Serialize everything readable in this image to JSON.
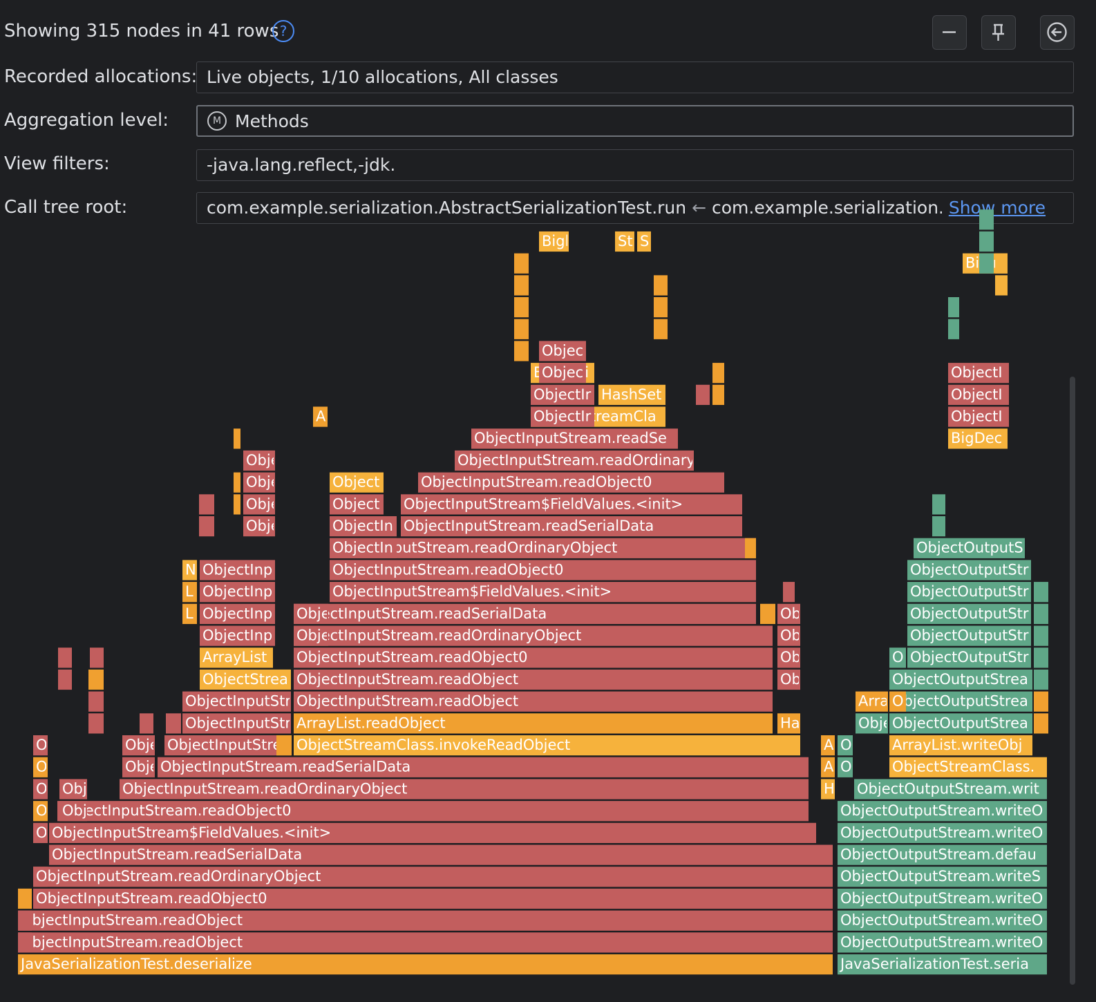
{
  "header": {
    "status": "Showing 315 nodes in 41 rows",
    "help_glyph": "?",
    "collapse_label": "−"
  },
  "settings": {
    "recorded_label": "Recorded allocations:",
    "recorded_value": "Live objects, 1/10 allocations, All classes",
    "aggregation_label": "Aggregation level:",
    "aggregation_badge": "M",
    "aggregation_value": "Methods",
    "filters_label": "View filters:",
    "filters_value": "-java.lang.reflect,-jdk.",
    "root_label": "Call tree root:",
    "root_value_1": "com.example.serialization.AbstractSerializationTest.run",
    "root_arrow": "←",
    "root_value_2": "com.example.serialization.Al",
    "root_more_glyph": "▸",
    "show_more": "Show more"
  },
  "icons": [
    "help-icon",
    "minus-icon",
    "pin-icon",
    "back-icon"
  ],
  "colors": {
    "red": "#c25e5e",
    "orange": "#f0a030",
    "yellow": "#f6b23c",
    "green": "#5fa788"
  },
  "flame_frames": [
    {
      "t": "JavaSerializationTest.deserialize",
      "c": "orange"
    },
    {
      "t": "ObjectInputStream.readObject",
      "c": "red"
    },
    {
      "t": "ObjectInputStream.readObject",
      "c": "red"
    },
    {
      "t": "ObjectInputStream.readObject0",
      "c": "red"
    },
    {
      "t": "ObjectInputStream.readOrdinaryObject",
      "c": "red"
    },
    {
      "t": "ObjectInputStream.readSerialData",
      "c": "red"
    },
    {
      "t": "ObjectInputStream$FieldValues.<init>",
      "c": "red"
    },
    {
      "t": "ObjectInputStream.readObject0",
      "c": "red"
    },
    {
      "t": "ObjectInputStream.readOrdinaryObject",
      "c": "red"
    },
    {
      "t": "ObjectInputStream.readSerialData",
      "c": "red"
    },
    {
      "t": "ObjectStreamClass.invokeReadObject",
      "c": "yellow"
    },
    {
      "t": "ArrayList.readObject",
      "c": "orange"
    },
    {
      "t": "ObjectInputStream.readObject",
      "c": "red"
    },
    {
      "t": "ObjectInputStream.readObject",
      "c": "red"
    },
    {
      "t": "ObjectInputStream.readObject0",
      "c": "red"
    },
    {
      "t": "ObjectInputStream.readOrdinaryObject",
      "c": "red"
    },
    {
      "t": "ObjectInputStream.readSerialData",
      "c": "red"
    },
    {
      "t": "ObjectInputStream$FieldValues.<init>",
      "c": "red"
    },
    {
      "t": "ObjectInputStream.readObject0",
      "c": "red"
    },
    {
      "t": "ObjectInputStream.readOrdinaryObject",
      "c": "red"
    },
    {
      "t": "ObjectInputStream.readSerialData",
      "c": "red"
    },
    {
      "t": "ObjectInputStream$FieldValues.<init>",
      "c": "red"
    },
    {
      "t": "ObjectInputStream.readObject0",
      "c": "red"
    },
    {
      "t": "ObjectInputStream.readOrdinaryObject",
      "c": "red"
    },
    {
      "t": "ObjectInputStream.readSe",
      "c": "red"
    },
    {
      "t": "ObjectStreamCla",
      "c": "yellow"
    },
    {
      "t": "HashSet",
      "c": "yellow"
    },
    {
      "t": "BigDeci",
      "c": "yellow"
    },
    {
      "t": "JavaSerializationTest.seria",
      "c": "green"
    },
    {
      "t": "ObjectOutputStream.writeO",
      "c": "green"
    },
    {
      "t": "ObjectOutputStream.writeO",
      "c": "green"
    },
    {
      "t": "ObjectOutputStream.writeO",
      "c": "green"
    },
    {
      "t": "ObjectOutputStream.writeS",
      "c": "green"
    },
    {
      "t": "ObjectOutputStream.defau",
      "c": "green"
    },
    {
      "t": "ObjectOutputStream.writeO",
      "c": "green"
    },
    {
      "t": "ObjectOutputStream.writeO",
      "c": "green"
    },
    {
      "t": "ObjectOutputStream.writ",
      "c": "green"
    },
    {
      "t": "ObjectStreamClass.",
      "c": "yellow"
    },
    {
      "t": "ArrayList.writeObj",
      "c": "yellow"
    },
    {
      "t": "ObjectOutputStrea",
      "c": "green"
    },
    {
      "t": "ObjectOutputStrea",
      "c": "green"
    },
    {
      "t": "ObjectOutputStrea",
      "c": "green"
    },
    {
      "t": "ObjectOutputStr",
      "c": "green"
    },
    {
      "t": "ObjectOutputStr",
      "c": "green"
    },
    {
      "t": "ObjectOutputStr",
      "c": "green"
    },
    {
      "t": "ObjectOutputStr",
      "c": "green"
    },
    {
      "t": "ObjectOutputStr",
      "c": "green"
    },
    {
      "t": "ObjectOutputS",
      "c": "green"
    },
    {
      "t": "BigDec",
      "c": "yellow"
    },
    {
      "t": "BigInt",
      "c": "yellow"
    },
    {
      "t": "ObjectInputStr",
      "c": "red"
    },
    {
      "t": "ObjectInputStr",
      "c": "red"
    },
    {
      "t": "ObjectInputStrea",
      "c": "red"
    },
    {
      "t": "ObjectStrea",
      "c": "yellow"
    },
    {
      "t": "ArrayList",
      "c": "yellow"
    },
    {
      "t": "ObjectInp",
      "c": "red"
    },
    {
      "t": "ObjectInp",
      "c": "red"
    },
    {
      "t": "ObjectInp",
      "c": "red"
    },
    {
      "t": "ObjectInp",
      "c": "red"
    },
    {
      "t": "ObjectIn",
      "c": "red"
    },
    {
      "t": "ObjectIn",
      "c": "red"
    },
    {
      "t": "Object",
      "c": "red"
    },
    {
      "t": "Object",
      "c": "yellow"
    },
    {
      "t": "ObjectIr",
      "c": "red"
    },
    {
      "t": "ObjectIr",
      "c": "red"
    },
    {
      "t": "Objec",
      "c": "red"
    },
    {
      "t": "Objec",
      "c": "red"
    },
    {
      "t": "ObjectI",
      "c": "red"
    },
    {
      "t": "ObjectI",
      "c": "red"
    },
    {
      "t": "ObjectI",
      "c": "red"
    },
    {
      "t": "Obj",
      "c": "red"
    },
    {
      "t": "Obj",
      "c": "red"
    },
    {
      "t": "Obje",
      "c": "red"
    },
    {
      "t": "Obje",
      "c": "red"
    },
    {
      "t": "Obje",
      "c": "red"
    },
    {
      "t": "Obje",
      "c": "red"
    },
    {
      "t": "Obje",
      "c": "red"
    },
    {
      "t": "Obje",
      "c": "red"
    },
    {
      "t": "Obje",
      "c": "red"
    },
    {
      "t": "Obje",
      "c": "red"
    },
    {
      "t": "Obje",
      "c": "green"
    },
    {
      "t": "Arra",
      "c": "orange"
    },
    {
      "t": "Ob",
      "c": "red"
    },
    {
      "t": "Ha",
      "c": "orange"
    },
    {
      "t": "Bigl",
      "c": "yellow"
    },
    {
      "t": "St",
      "c": "yellow"
    },
    {
      "t": "S",
      "c": "yellow"
    },
    {
      "t": "A",
      "c": "orange"
    },
    {
      "t": "N",
      "c": "yellow"
    },
    {
      "t": "L",
      "c": "orange"
    },
    {
      "t": "H",
      "c": "yellow"
    },
    {
      "t": "O",
      "c": "red"
    },
    {
      "t": "O",
      "c": "orange"
    },
    {
      "t": "O",
      "c": "green"
    }
  ]
}
